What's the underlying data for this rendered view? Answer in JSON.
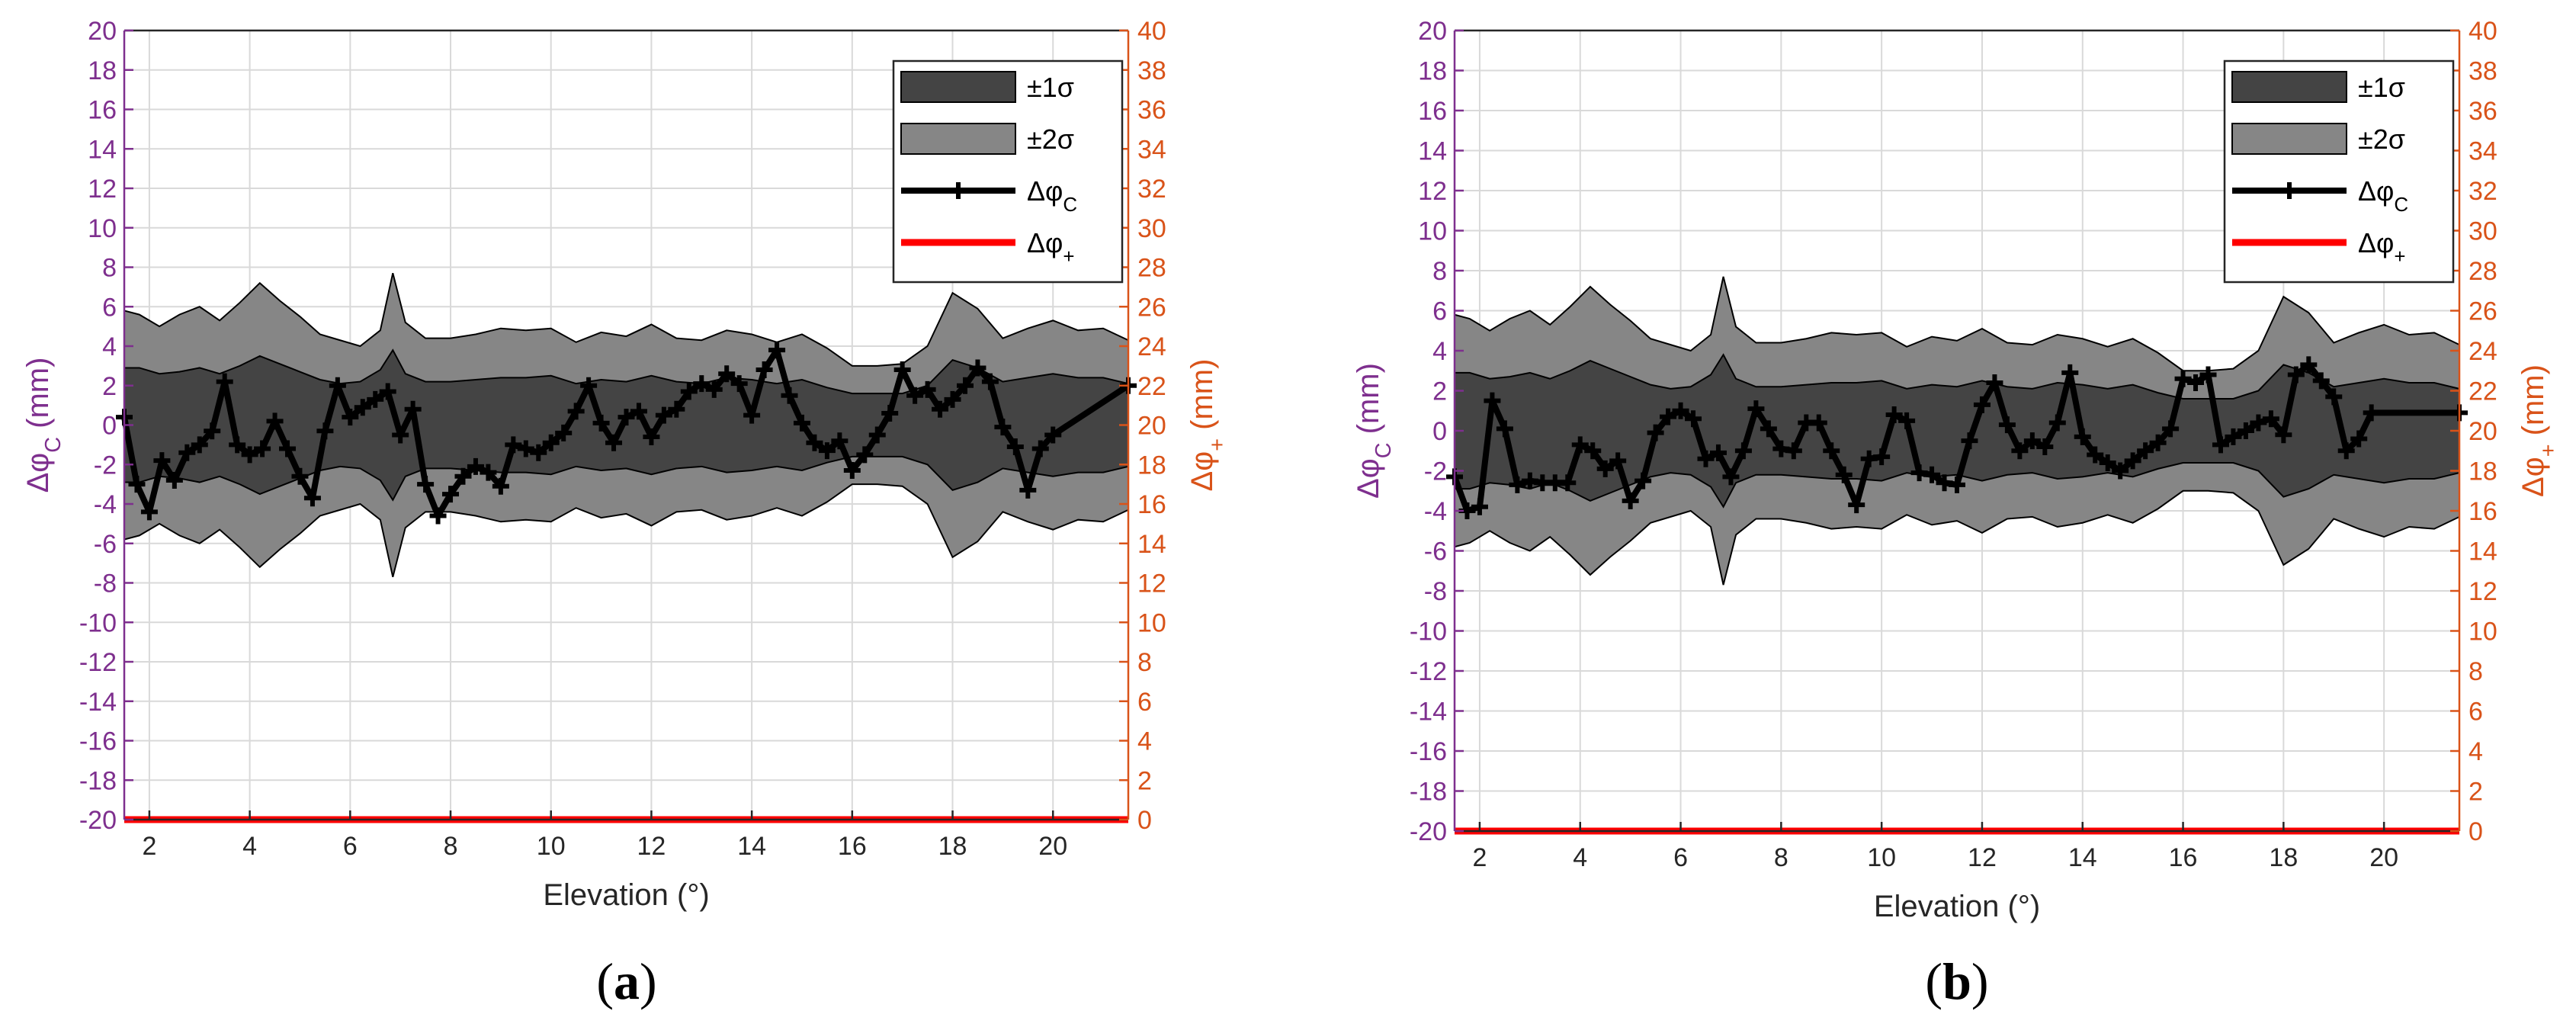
{
  "colors": {
    "left_axis": "#7E2F8E",
    "right_axis": "#D95319",
    "band1": "#444444",
    "band2": "#868686",
    "line": "#000000",
    "plus_line": "#FF0000",
    "grid": "#D9D9D9"
  },
  "chart_data": [
    {
      "type": "line",
      "caption": "(a)",
      "xlabel": "Elevation (°)",
      "ylabel_left": "Δφ_C (mm)",
      "ylabel_right": "Δφ_+ (mm)",
      "xlim": [
        1.5,
        21.5
      ],
      "ylim_left": [
        -20,
        20
      ],
      "ylim_right": [
        0,
        40
      ],
      "xticks": [
        "2",
        "4",
        "6",
        "8",
        "10",
        "12",
        "14",
        "16",
        "18",
        "20"
      ],
      "yticks_left": [
        "20",
        "18",
        "16",
        "14",
        "12",
        "10",
        "8",
        "6",
        "4",
        "2",
        "0",
        "-2",
        "-4",
        "-6",
        "-8",
        "-10",
        "-12",
        "-14",
        "-16",
        "-18",
        "-20"
      ],
      "yticks_right": [
        "40",
        "38",
        "36",
        "34",
        "32",
        "30",
        "28",
        "26",
        "24",
        "22",
        "20",
        "18",
        "16",
        "14",
        "12",
        "10",
        "8",
        "6",
        "4",
        "2",
        "0"
      ],
      "legend": [
        "±1σ",
        "±2σ",
        "Δφ_C",
        "Δφ_+"
      ],
      "sigma_x": [
        1.5,
        1.8,
        2.2,
        2.6,
        3.0,
        3.4,
        3.8,
        4.2,
        4.6,
        5.0,
        5.4,
        5.8,
        6.2,
        6.6,
        6.85,
        7.1,
        7.5,
        8.0,
        8.5,
        9.0,
        9.5,
        10.0,
        10.5,
        11.0,
        11.5,
        12.0,
        12.5,
        13.0,
        13.5,
        14.0,
        14.5,
        15.0,
        15.5,
        16.0,
        16.5,
        17.0,
        17.5,
        18.0,
        18.5,
        19.0,
        19.5,
        20.0,
        20.5,
        21.0,
        21.5
      ],
      "sigma2": [
        5.8,
        5.6,
        5.0,
        5.6,
        6.0,
        5.3,
        6.2,
        7.2,
        6.3,
        5.5,
        4.6,
        4.3,
        4.0,
        4.8,
        7.7,
        5.2,
        4.4,
        4.4,
        4.6,
        4.9,
        4.8,
        4.9,
        4.2,
        4.7,
        4.5,
        5.1,
        4.4,
        4.3,
        4.8,
        4.6,
        4.2,
        4.6,
        3.9,
        3.0,
        3.0,
        3.1,
        4.0,
        6.7,
        5.9,
        4.4,
        4.9,
        5.3,
        4.8,
        4.9,
        4.3
      ],
      "sigma1": [
        2.9,
        2.9,
        2.6,
        2.7,
        2.9,
        2.6,
        3.0,
        3.5,
        3.1,
        2.7,
        2.3,
        2.1,
        2.2,
        2.8,
        3.8,
        2.6,
        2.2,
        2.2,
        2.3,
        2.4,
        2.4,
        2.5,
        2.1,
        2.3,
        2.2,
        2.5,
        2.2,
        2.1,
        2.4,
        2.3,
        2.1,
        2.3,
        1.9,
        1.6,
        1.6,
        1.6,
        2.0,
        3.3,
        2.9,
        2.2,
        2.4,
        2.6,
        2.4,
        2.4,
        2.1
      ],
      "dphi_c": [
        [
          1.5,
          0.4
        ],
        [
          1.75,
          -3.0
        ],
        [
          2.0,
          -4.4
        ],
        [
          2.25,
          -1.8
        ],
        [
          2.5,
          -2.8
        ],
        [
          2.75,
          -1.4
        ],
        [
          3.0,
          -1.0
        ],
        [
          3.25,
          -0.3
        ],
        [
          3.5,
          2.2
        ],
        [
          3.75,
          -1.0
        ],
        [
          4.0,
          -1.5
        ],
        [
          4.25,
          -1.2
        ],
        [
          4.5,
          0.2
        ],
        [
          4.75,
          -1.2
        ],
        [
          5.0,
          -2.6
        ],
        [
          5.25,
          -3.7
        ],
        [
          5.5,
          -0.3
        ],
        [
          5.75,
          2.0
        ],
        [
          6.0,
          0.4
        ],
        [
          6.25,
          0.9
        ],
        [
          6.5,
          1.3
        ],
        [
          6.75,
          1.7
        ],
        [
          7.0,
          -0.5
        ],
        [
          7.25,
          0.8
        ],
        [
          7.5,
          -3.0
        ],
        [
          7.75,
          -4.6
        ],
        [
          8.0,
          -3.5
        ],
        [
          8.25,
          -2.6
        ],
        [
          8.5,
          -2.1
        ],
        [
          8.75,
          -2.4
        ],
        [
          9.0,
          -3.1
        ],
        [
          9.25,
          -1.0
        ],
        [
          9.5,
          -1.2
        ],
        [
          9.75,
          -1.4
        ],
        [
          10.0,
          -0.9
        ],
        [
          10.25,
          -0.4
        ],
        [
          10.5,
          0.7
        ],
        [
          10.75,
          2.0
        ],
        [
          11.0,
          0.1
        ],
        [
          11.25,
          -0.9
        ],
        [
          11.5,
          0.4
        ],
        [
          11.75,
          0.7
        ],
        [
          12.0,
          -0.6
        ],
        [
          12.25,
          0.5
        ],
        [
          12.5,
          0.8
        ],
        [
          12.75,
          1.7
        ],
        [
          13.0,
          2.1
        ],
        [
          13.25,
          1.8
        ],
        [
          13.5,
          2.6
        ],
        [
          13.75,
          2.1
        ],
        [
          14.0,
          0.5
        ],
        [
          14.25,
          2.8
        ],
        [
          14.5,
          3.8
        ],
        [
          14.75,
          1.5
        ],
        [
          15.0,
          0.1
        ],
        [
          15.25,
          -0.9
        ],
        [
          15.5,
          -1.3
        ],
        [
          15.75,
          -0.8
        ],
        [
          16.0,
          -2.3
        ],
        [
          16.25,
          -1.5
        ],
        [
          16.5,
          -0.5
        ],
        [
          16.75,
          0.6
        ],
        [
          17.0,
          2.8
        ],
        [
          17.25,
          1.5
        ],
        [
          17.5,
          1.8
        ],
        [
          17.75,
          0.8
        ],
        [
          18.0,
          1.3
        ],
        [
          18.25,
          2.0
        ],
        [
          18.5,
          2.9
        ],
        [
          18.75,
          2.2
        ],
        [
          19.0,
          -0.1
        ],
        [
          19.25,
          -1.1
        ],
        [
          19.5,
          -3.3
        ],
        [
          19.75,
          -1.2
        ],
        [
          20.0,
          -0.5
        ],
        [
          21.5,
          2.0
        ]
      ],
      "dphi_plus": [
        [
          1.5,
          0
        ],
        [
          21.5,
          0
        ]
      ]
    },
    {
      "type": "line",
      "caption": "(b)",
      "xlabel": "Elevation (°)",
      "ylabel_left": "Δφ_C (mm)",
      "ylabel_right": "Δφ_+ (mm)",
      "xlim": [
        1.5,
        21.5
      ],
      "ylim_left": [
        -20,
        20
      ],
      "ylim_right": [
        0,
        40
      ],
      "xticks": [
        "2",
        "4",
        "6",
        "8",
        "10",
        "12",
        "14",
        "16",
        "18",
        "20"
      ],
      "yticks_left": [
        "20",
        "18",
        "16",
        "14",
        "12",
        "10",
        "8",
        "6",
        "4",
        "2",
        "0",
        "-2",
        "-4",
        "-6",
        "-8",
        "-10",
        "-12",
        "-14",
        "-16",
        "-18",
        "-20"
      ],
      "yticks_right": [
        "40",
        "38",
        "36",
        "34",
        "32",
        "30",
        "28",
        "26",
        "24",
        "22",
        "20",
        "18",
        "16",
        "14",
        "12",
        "10",
        "8",
        "6",
        "4",
        "2",
        "0"
      ],
      "legend": [
        "±1σ",
        "±2σ",
        "Δφ_C",
        "Δφ_+"
      ],
      "sigma_x": [
        1.5,
        1.8,
        2.2,
        2.6,
        3.0,
        3.4,
        3.8,
        4.2,
        4.6,
        5.0,
        5.4,
        5.8,
        6.2,
        6.6,
        6.85,
        7.1,
        7.5,
        8.0,
        8.5,
        9.0,
        9.5,
        10.0,
        10.5,
        11.0,
        11.5,
        12.0,
        12.5,
        13.0,
        13.5,
        14.0,
        14.5,
        15.0,
        15.5,
        16.0,
        16.5,
        17.0,
        17.5,
        18.0,
        18.5,
        19.0,
        19.5,
        20.0,
        20.5,
        21.0,
        21.5
      ],
      "sigma2": [
        5.8,
        5.6,
        5.0,
        5.6,
        6.0,
        5.3,
        6.2,
        7.2,
        6.3,
        5.5,
        4.6,
        4.3,
        4.0,
        4.8,
        7.7,
        5.2,
        4.4,
        4.4,
        4.6,
        4.9,
        4.8,
        4.9,
        4.2,
        4.7,
        4.5,
        5.1,
        4.4,
        4.3,
        4.8,
        4.6,
        4.2,
        4.6,
        3.9,
        3.0,
        3.0,
        3.1,
        4.0,
        6.7,
        5.9,
        4.4,
        4.9,
        5.3,
        4.8,
        4.9,
        4.3
      ],
      "sigma1": [
        2.9,
        2.9,
        2.6,
        2.7,
        2.9,
        2.6,
        3.0,
        3.5,
        3.1,
        2.7,
        2.3,
        2.1,
        2.2,
        2.8,
        3.8,
        2.6,
        2.2,
        2.2,
        2.3,
        2.4,
        2.4,
        2.5,
        2.1,
        2.3,
        2.2,
        2.5,
        2.2,
        2.1,
        2.4,
        2.3,
        2.1,
        2.3,
        1.9,
        1.6,
        1.6,
        1.6,
        2.0,
        3.3,
        2.9,
        2.2,
        2.4,
        2.6,
        2.4,
        2.4,
        2.1
      ],
      "dphi_c": [
        [
          1.5,
          -2.3
        ],
        [
          1.75,
          -4.0
        ],
        [
          2.0,
          -3.8
        ],
        [
          2.25,
          1.5
        ],
        [
          2.5,
          0.1
        ],
        [
          2.75,
          -2.7
        ],
        [
          3.0,
          -2.5
        ],
        [
          3.25,
          -2.6
        ],
        [
          3.5,
          -2.6
        ],
        [
          3.75,
          -2.6
        ],
        [
          4.0,
          -0.7
        ],
        [
          4.25,
          -1.0
        ],
        [
          4.5,
          -1.9
        ],
        [
          4.75,
          -1.5
        ],
        [
          5.0,
          -3.5
        ],
        [
          5.25,
          -2.5
        ],
        [
          5.5,
          -0.1
        ],
        [
          5.75,
          0.7
        ],
        [
          6.0,
          1.0
        ],
        [
          6.25,
          0.6
        ],
        [
          6.5,
          -1.4
        ],
        [
          6.75,
          -1.1
        ],
        [
          7.0,
          -2.3
        ],
        [
          7.25,
          -1.0
        ],
        [
          7.5,
          1.1
        ],
        [
          7.75,
          0.1
        ],
        [
          8.0,
          -0.9
        ],
        [
          8.25,
          -1.0
        ],
        [
          8.5,
          0.4
        ],
        [
          8.75,
          0.4
        ],
        [
          9.0,
          -1.0
        ],
        [
          9.25,
          -2.2
        ],
        [
          9.5,
          -3.7
        ],
        [
          9.75,
          -1.4
        ],
        [
          10.0,
          -1.3
        ],
        [
          10.25,
          0.8
        ],
        [
          10.5,
          0.5
        ],
        [
          10.75,
          -2.1
        ],
        [
          11.0,
          -2.2
        ],
        [
          11.25,
          -2.6
        ],
        [
          11.5,
          -2.7
        ],
        [
          11.75,
          -0.5
        ],
        [
          12.0,
          1.3
        ],
        [
          12.25,
          2.4
        ],
        [
          12.5,
          0.3
        ],
        [
          12.75,
          -1.0
        ],
        [
          13.0,
          -0.5
        ],
        [
          13.25,
          -0.8
        ],
        [
          13.5,
          0.4
        ],
        [
          13.75,
          2.9
        ],
        [
          14.0,
          -0.3
        ],
        [
          14.25,
          -1.2
        ],
        [
          14.5,
          -1.6
        ],
        [
          14.75,
          -2.0
        ],
        [
          15.0,
          -1.5
        ],
        [
          15.25,
          -1.0
        ],
        [
          15.5,
          -0.6
        ],
        [
          15.75,
          0.1
        ],
        [
          16.0,
          2.6
        ],
        [
          16.25,
          2.4
        ],
        [
          16.5,
          2.8
        ],
        [
          16.75,
          -0.7
        ],
        [
          17.0,
          -0.3
        ],
        [
          17.25,
          0.0
        ],
        [
          17.5,
          0.4
        ],
        [
          17.75,
          0.6
        ],
        [
          18.0,
          -0.2
        ],
        [
          18.25,
          2.8
        ],
        [
          18.5,
          3.3
        ],
        [
          18.75,
          2.5
        ],
        [
          19.0,
          1.7
        ],
        [
          19.25,
          -1.0
        ],
        [
          19.5,
          -0.4
        ],
        [
          19.75,
          0.9
        ],
        [
          21.5,
          0.9
        ]
      ],
      "dphi_plus": [
        [
          1.5,
          0
        ],
        [
          21.5,
          0
        ]
      ]
    }
  ]
}
